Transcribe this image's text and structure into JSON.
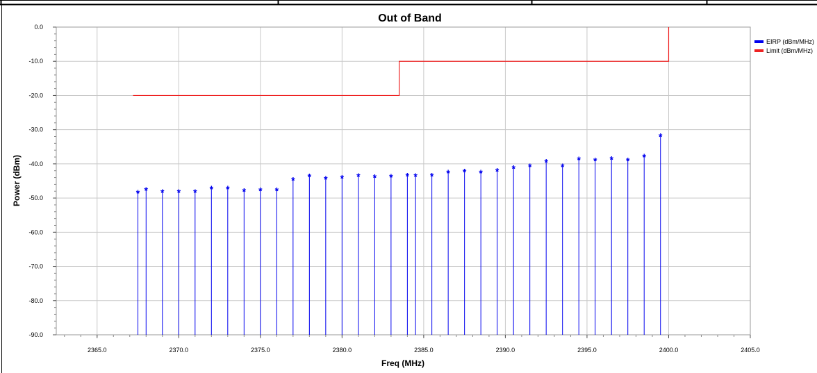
{
  "chart_data": {
    "type": "line",
    "title": "Out of Band",
    "xlabel": "Freq (MHz)",
    "ylabel": "Power (dBm)",
    "xlim": [
      2362.5,
      2405.0
    ],
    "ylim": [
      -90.0,
      0.0
    ],
    "x_ticks": [
      "2365.0",
      "2370.0",
      "2375.0",
      "2380.0",
      "2385.0",
      "2390.0",
      "2395.0",
      "2400.0",
      "2405.0"
    ],
    "x_tick_values": [
      2365,
      2370,
      2375,
      2380,
      2385,
      2390,
      2395,
      2400,
      2405
    ],
    "y_ticks": [
      "0.0",
      "-10.0",
      "-20.0",
      "-30.0",
      "-40.0",
      "-50.0",
      "-60.0",
      "-70.0",
      "-80.0",
      "-90.0"
    ],
    "y_tick_values": [
      0,
      -10,
      -20,
      -30,
      -40,
      -50,
      -60,
      -70,
      -80,
      -90
    ],
    "grid": true,
    "legend_position": "top-right",
    "series": [
      {
        "name": "EIRP (dBm/MHz)",
        "style": "stem",
        "color": "#0000ee",
        "x": [
          2367.5,
          2368.0,
          2369.0,
          2370.0,
          2371.0,
          2372.0,
          2373.0,
          2374.0,
          2375.0,
          2376.0,
          2377.0,
          2378.0,
          2379.0,
          2380.0,
          2381.0,
          2382.0,
          2383.0,
          2384.0,
          2384.5,
          2385.5,
          2386.5,
          2387.5,
          2388.5,
          2389.5,
          2390.5,
          2391.5,
          2392.5,
          2393.5,
          2394.5,
          2395.5,
          2396.5,
          2397.5,
          2398.5,
          2399.5
        ],
        "y": [
          -48.0,
          -47.2,
          -47.8,
          -47.8,
          -47.8,
          -46.8,
          -46.8,
          -47.5,
          -47.3,
          -47.3,
          -44.3,
          -43.3,
          -44.0,
          -43.7,
          -43.2,
          -43.5,
          -43.4,
          -43.1,
          -43.2,
          -43.1,
          -42.2,
          -41.9,
          -42.2,
          -41.6,
          -40.8,
          -40.3,
          -39.0,
          -40.3,
          -38.3,
          -38.6,
          -38.2,
          -38.6,
          -37.5,
          -31.5
        ]
      },
      {
        "name": "Limit (dBm/MHz)",
        "style": "step",
        "color": "#ee2222",
        "x": [
          2367.2,
          2383.5,
          2383.5,
          2400.0,
          2400.0
        ],
        "y": [
          -20.0,
          -20.0,
          -10.0,
          -10.0,
          0.0
        ]
      }
    ]
  }
}
